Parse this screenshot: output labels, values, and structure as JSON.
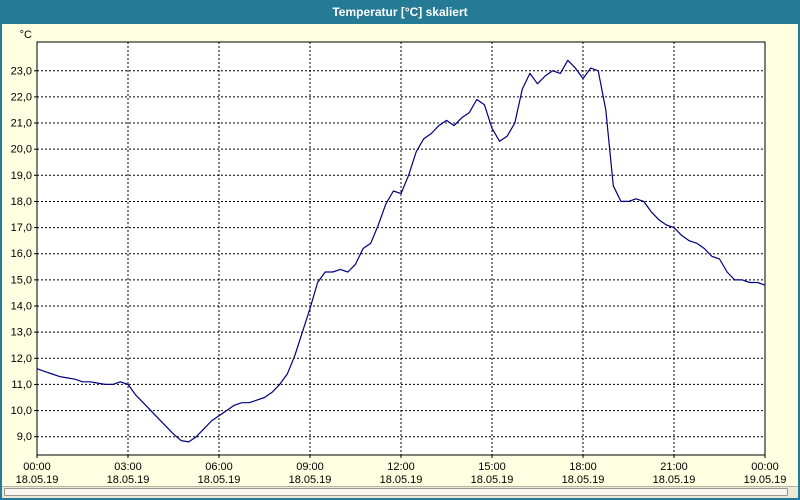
{
  "window": {
    "title": "Temperatur [°C] skaliert"
  },
  "colors": {
    "titlebar": "#257a96",
    "titlebar_text": "#ffffff",
    "window_bg": "#ffffe1",
    "plot_bg": "#ffffff",
    "grid": "#000000",
    "axis": "#000000",
    "line": "#000080",
    "scrollbar_track": "#ece9d8",
    "scrollbar_thumb": "#f7f6f0"
  },
  "chart_data": {
    "type": "line",
    "title": "Temperatur [°C] skaliert",
    "xlabel": "",
    "ylabel": "°C",
    "grid": "dotted",
    "legend_position": "none",
    "x_axis": {
      "range_hours": [
        0,
        24
      ],
      "ticks": [
        {
          "hour": 0,
          "time": "00:00",
          "date": "18.05.19"
        },
        {
          "hour": 3,
          "time": "03:00",
          "date": "18.05.19"
        },
        {
          "hour": 6,
          "time": "06:00",
          "date": "18.05.19"
        },
        {
          "hour": 9,
          "time": "09:00",
          "date": "18.05.19"
        },
        {
          "hour": 12,
          "time": "12:00",
          "date": "18.05.19"
        },
        {
          "hour": 15,
          "time": "15:00",
          "date": "18.05.19"
        },
        {
          "hour": 18,
          "time": "18:00",
          "date": "18.05.19"
        },
        {
          "hour": 21,
          "time": "21:00",
          "date": "18.05.19"
        },
        {
          "hour": 24,
          "time": "00:00",
          "date": "19.05.19"
        }
      ]
    },
    "y_axis": {
      "unit": "°C",
      "range": [
        8.3,
        24.1
      ],
      "ticks": [
        {
          "value": 23,
          "label": "23,0"
        },
        {
          "value": 22,
          "label": "22,0"
        },
        {
          "value": 21,
          "label": "21,0"
        },
        {
          "value": 20,
          "label": "20,0"
        },
        {
          "value": 19,
          "label": "19,0"
        },
        {
          "value": 18,
          "label": "18,0"
        },
        {
          "value": 17,
          "label": "17,0"
        },
        {
          "value": 16,
          "label": "16,0"
        },
        {
          "value": 15,
          "label": "15,0"
        },
        {
          "value": 14,
          "label": "14,0"
        },
        {
          "value": 13,
          "label": "13,0"
        },
        {
          "value": 12,
          "label": "12,0"
        },
        {
          "value": 11,
          "label": "11,0"
        },
        {
          "value": 10,
          "label": "10,0"
        },
        {
          "value": 9,
          "label": "9,0"
        }
      ]
    },
    "series": [
      {
        "name": "Temperatur [°C]",
        "color": "#000080",
        "x_start_hour": 0,
        "x_step_hours": 0.25,
        "values": [
          11.6,
          11.5,
          11.4,
          11.3,
          11.25,
          11.2,
          11.1,
          11.1,
          11.05,
          11.0,
          11.0,
          11.1,
          11.0,
          10.6,
          10.3,
          10.0,
          9.7,
          9.4,
          9.1,
          8.85,
          8.8,
          9.0,
          9.3,
          9.6,
          9.8,
          10.0,
          10.2,
          10.3,
          10.3,
          10.4,
          10.5,
          10.7,
          11.0,
          11.4,
          12.1,
          13.0,
          13.9,
          14.9,
          15.3,
          15.3,
          15.4,
          15.3,
          15.6,
          16.2,
          16.4,
          17.1,
          17.9,
          18.4,
          18.3,
          19.0,
          19.9,
          20.4,
          20.6,
          20.9,
          21.1,
          20.9,
          21.2,
          21.4,
          21.9,
          21.7,
          20.8,
          20.3,
          20.5,
          21.0,
          22.3,
          22.9,
          22.5,
          22.8,
          23.0,
          22.9,
          23.4,
          23.1,
          22.7,
          23.1,
          23.0,
          21.5,
          18.6,
          18.0,
          18.0,
          18.1,
          18.0,
          17.6,
          17.3,
          17.1,
          17.0,
          16.7,
          16.5,
          16.4,
          16.2,
          15.9,
          15.8,
          15.3,
          15.0,
          15.0,
          14.9,
          14.9,
          14.8
        ]
      }
    ]
  }
}
